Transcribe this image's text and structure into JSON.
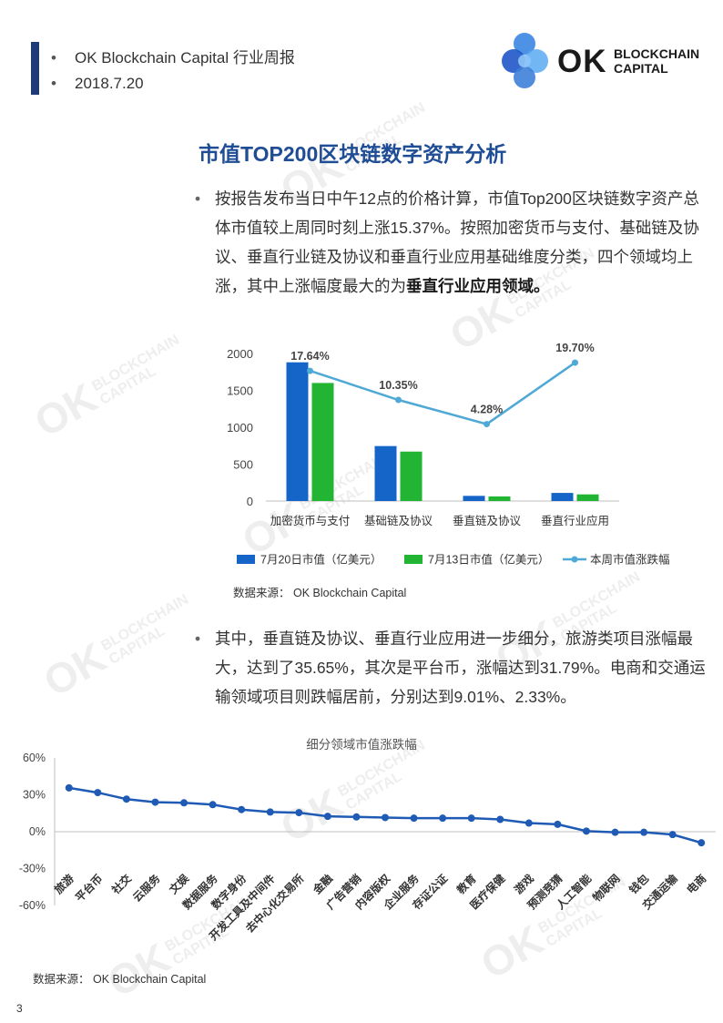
{
  "header": {
    "line1": "OK Blockchain Capital 行业周报",
    "line2": "2018.7.20",
    "bullet": "•"
  },
  "logo": {
    "ok": "OK",
    "blockchain": "BLOCKCHAIN",
    "capital": "CAPITAL",
    "colors": [
      "#2f7fe0",
      "#1f56c8",
      "#5aa9f2",
      "#3f7fd8",
      "#8ec5f8"
    ]
  },
  "watermark": {
    "ok": "OK",
    "line1": "BLOCKCHAIN",
    "line2": "CAPITAL"
  },
  "section_title": "市值TOP200区块链数字资产分析",
  "paragraph1": {
    "bullet": "•",
    "text": "按报告发布当日中午12点的价格计算，市值Top200区块链数字资产总体市值较上周同时刻上涨15.37%。按照加密货币与支付、基础链及协议、垂直行业链及协议和垂直行业应用基础维度分类，四个领域均上涨，其中上涨幅度最大的为",
    "bold": "垂直行业应用领域。"
  },
  "paragraph2": {
    "bullet": "•",
    "text": "其中，垂直链及协议、垂直行业应用进一步细分，旅游类项目涨幅最大，达到了35.65%，其次是平台币，涨幅达到31.79%。电商和交通运输领域项目则跌幅居前，分别达到9.01%、2.33%。"
  },
  "chart_data": [
    {
      "type": "bar",
      "categories": [
        "加密货币与支付",
        "基础链及协议",
        "垂直链及协议",
        "垂直行业应用"
      ],
      "series": [
        {
          "name": "7月20日市值（亿美元）",
          "type": "bar",
          "color": "#1565c8",
          "values": [
            1880,
            745,
            70,
            110
          ]
        },
        {
          "name": "7月13日市值（亿美元）",
          "type": "bar",
          "color": "#22b533",
          "values": [
            1600,
            670,
            62,
            90
          ]
        },
        {
          "name": "本周市值涨跌幅",
          "type": "line",
          "color": "#4fa9d6",
          "values": [
            17.64,
            10.35,
            4.28,
            19.7
          ],
          "labels": [
            "17.64%",
            "10.35%",
            "4.28%",
            "19.70%"
          ]
        }
      ],
      "yticks": [
        "2000",
        "1500",
        "1000",
        "500",
        "0"
      ],
      "ylim": [
        0,
        2000
      ],
      "y2lim": [
        -15,
        22
      ],
      "legend": "bottom",
      "source": "数据来源：  OK Blockchain  Capital"
    },
    {
      "type": "line",
      "title": "细分领域市值涨跌幅",
      "categories": [
        "旅游",
        "平台币",
        "社交",
        "云服务",
        "文娱",
        "数据服务",
        "数字身份",
        "开发工具及中间件",
        "去中心化交易所",
        "金融",
        "广告营销",
        "内容版权",
        "企业服务",
        "存证公证",
        "教育",
        "医疗保健",
        "游戏",
        "预测竞猜",
        "人工智能",
        "物联网",
        "钱包",
        "交通运输",
        "电商"
      ],
      "values": [
        35.65,
        31.79,
        26.5,
        24.0,
        23.5,
        22.0,
        18.0,
        16.0,
        15.5,
        12.5,
        12.0,
        11.5,
        11.0,
        11.0,
        11.0,
        10.0,
        7.0,
        6.0,
        0.5,
        -0.5,
        -0.5,
        -2.33,
        -9.01
      ],
      "yticks": [
        "60%",
        "30%",
        "0%",
        "-30%",
        "-60%"
      ],
      "ylim": [
        -60,
        60
      ],
      "color": "#1f5bb5",
      "source": "数据来源：  OK Blockchain  Capital"
    }
  ],
  "page_number": "3"
}
